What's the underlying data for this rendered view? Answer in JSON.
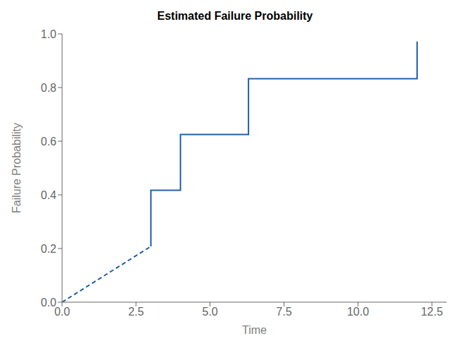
{
  "chart_data": {
    "type": "line",
    "title": "Estimated Failure Probability",
    "x_label": "Time",
    "y_label": "Failure Probability",
    "xlim": [
      0.0,
      13.0
    ],
    "ylim": [
      0.0,
      1.0
    ],
    "xticks": [
      {
        "value": 0.0,
        "label": "0.0"
      },
      2.5,
      {
        "value": 5.0,
        "label": "5.0"
      },
      7.5,
      {
        "value": 10.0,
        "label": "10.0"
      },
      12.5
    ],
    "yticks": [
      {
        "value": 0.0,
        "label": "0.0"
      },
      0.2,
      0.4,
      0.6,
      0.8,
      {
        "value": 1.0,
        "label": "1.0"
      }
    ],
    "grid": false,
    "series": [
      {
        "color": "#2060a8",
        "line_style": "dashed",
        "x": [
          0.0,
          3.0
        ],
        "values": [
          0.0,
          0.208
        ]
      },
      {
        "color": "#2060a8",
        "line_style": "solid",
        "x": [
          3.0,
          3.0,
          4.0,
          4.0,
          6.3,
          6.3,
          8.0,
          8.0,
          12.0,
          12.0
        ],
        "values": [
          0.208,
          0.417,
          0.417,
          0.625,
          0.625,
          0.833,
          0.833,
          0.833,
          0.833,
          0.972
        ]
      }
    ]
  }
}
